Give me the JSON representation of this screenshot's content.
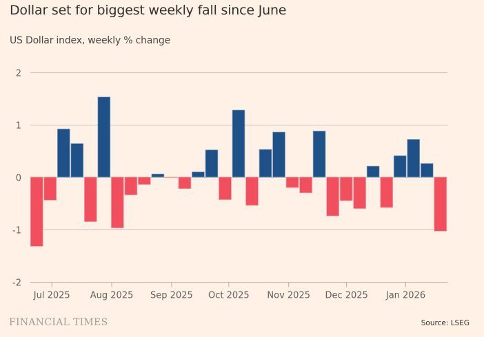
{
  "header": {
    "title": "Dollar set for biggest weekly fall since June",
    "subtitle": "US Dollar index, weekly % change"
  },
  "footer": {
    "brand": "FINANCIAL TIMES",
    "source": "Source: LSEG"
  },
  "colors": {
    "background": "#fff1e5",
    "positive": "#1f5189",
    "negative": "#f24f5e",
    "gridline": "#ccc1b7",
    "text": "#33302e"
  },
  "chart_data": {
    "type": "bar",
    "title": "Dollar set for biggest weekly fall since June",
    "subtitle": "US Dollar index, weekly % change",
    "xlabel": "",
    "ylabel": "",
    "ylim": [
      -2,
      2
    ],
    "yticks": [
      2,
      1,
      0,
      -1,
      -2
    ],
    "grid": true,
    "legend": "none",
    "xtick_labels": [
      "Jul 2025",
      "Aug 2025",
      "Sep 2025",
      "Oct 2025",
      "Nov 2025",
      "Dec 2025",
      "Jan 2026"
    ],
    "xtick_positions": [
      1.6,
      6.05,
      10.5,
      14.75,
      19.2,
      23.5,
      27.9
    ],
    "values": [
      -1.32,
      -0.44,
      0.92,
      0.64,
      -0.85,
      1.53,
      -0.97,
      -0.34,
      -0.14,
      0.06,
      -0.01,
      -0.22,
      0.1,
      0.52,
      -0.43,
      1.28,
      -0.54,
      0.53,
      0.86,
      -0.2,
      -0.3,
      0.88,
      -0.74,
      -0.45,
      -0.6,
      0.21,
      -0.58,
      0.41,
      0.72,
      0.26,
      -1.03
    ],
    "source": "Source: LSEG"
  }
}
